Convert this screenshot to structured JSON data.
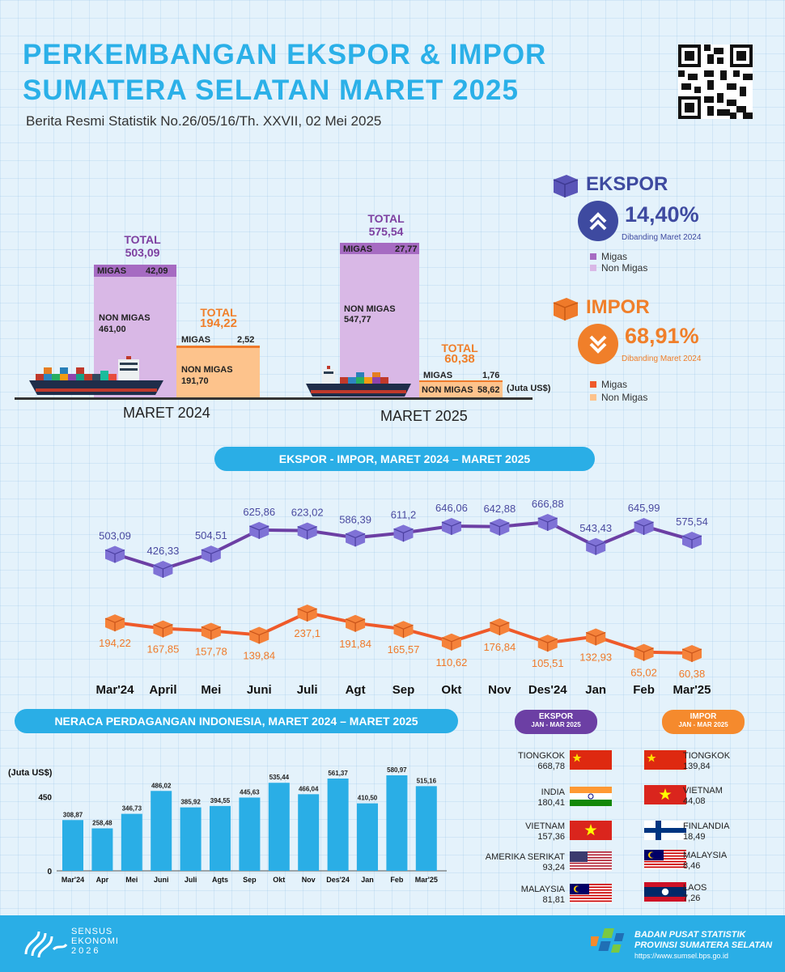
{
  "header": {
    "title_line1": "PERKEMBANGAN EKSPOR & IMPOR",
    "title_line2": "SUMATERA SELATAN MARET 2025",
    "subtitle": "Berita Resmi Statistik No.26/05/16/Th. XXVII, 02 Mei 2025"
  },
  "top_bars": {
    "unit": "(Juta US$)",
    "total_label": "TOTAL",
    "migas_label": "MIGAS",
    "nonmigas_label": "NON MIGAS",
    "mar2024": {
      "label": "MARET 2024",
      "ekspor_total": "503,09",
      "ekspor_migas": "42,09",
      "ekspor_nonmigas": "461,00",
      "impor_total": "194,22",
      "impor_migas": "2,52",
      "impor_nonmigas": "191,70"
    },
    "mar2025": {
      "label": "MARET 2025",
      "ekspor_total": "575,54",
      "ekspor_migas": "27,77",
      "ekspor_nonmigas": "547,77",
      "impor_total": "60,38",
      "impor_migas": "1,76",
      "impor_nonmigas": "58,62"
    }
  },
  "summary": {
    "ekspor": {
      "title": "EKSPOR",
      "pct": "14,40%",
      "note": "Dibanding Maret 2024",
      "legend_migas": "Migas",
      "legend_nonmigas": "Non Migas"
    },
    "impor": {
      "title": "IMPOR",
      "pct": "68,91%",
      "note": "Dibanding Maret 2024",
      "legend_migas": "Migas",
      "legend_nonmigas": "Non Migas"
    }
  },
  "line_section": {
    "title": "EKSPOR - IMPOR, MARET 2024 – MARET 2025"
  },
  "bar_section": {
    "title": "NERACA PERDAGANGAN INDONESIA, MARET 2024 – MARET 2025",
    "unit": "(Juta US$)"
  },
  "chart_data": [
    {
      "type": "line",
      "categories": [
        "Mar'24",
        "April",
        "Mei",
        "Juni",
        "Juli",
        "Agt",
        "Sep",
        "Okt",
        "Nov",
        "Des'24",
        "Jan",
        "Feb",
        "Mar'25"
      ],
      "series": [
        {
          "name": "EKSPOR",
          "values": [
            503.09,
            426.33,
            504.51,
            625.86,
            623.02,
            586.39,
            611.2,
            646.06,
            642.88,
            666.88,
            543.43,
            645.99,
            575.54
          ],
          "labels": [
            "503,09",
            "426,33",
            "504,51",
            "625,86",
            "623,02",
            "586,39",
            "611,2",
            "646,06",
            "642,88",
            "666,88",
            "543,43",
            "645,99",
            "575,54"
          ]
        },
        {
          "name": "IMPOR",
          "values": [
            194.22,
            167.85,
            157.78,
            139.84,
            237.1,
            191.84,
            165.57,
            110.62,
            176.84,
            105.51,
            132.93,
            65.02,
            60.38
          ],
          "labels": [
            "194,22",
            "167,85",
            "157,78",
            "139,84",
            "237,1",
            "191,84",
            "165,57",
            "110,62",
            "176,84",
            "105,51",
            "132,93",
            "65,02",
            "60,38"
          ]
        }
      ],
      "colors": {
        "ekspor": "#6c3fa4",
        "impor": "#ef5a2a"
      }
    },
    {
      "type": "bar",
      "categories": [
        "Mar'24",
        "Apr",
        "Mei",
        "Juni",
        "Juli",
        "Agts",
        "Sep",
        "Okt",
        "Nov",
        "Des'24",
        "Jan",
        "Feb",
        "Mar'25"
      ],
      "values": [
        308.87,
        258.48,
        346.73,
        486.02,
        385.92,
        394.55,
        445.63,
        535.44,
        466.04,
        561.37,
        410.5,
        580.97,
        515.16
      ],
      "labels": [
        "308,87",
        "258,48",
        "346,73",
        "486,02",
        "385,92",
        "394,55",
        "445,63",
        "535,44",
        "466,04",
        "561,37",
        "410,50",
        "580,97",
        "515,16"
      ],
      "ylabel": "(Juta US$)",
      "yticks": [
        0,
        450
      ],
      "ylim": [
        0,
        640
      ],
      "color": "#2aaee6"
    }
  ],
  "partners": {
    "ekspor": {
      "header": "EKSPOR",
      "sub": "JAN - MAR 2025",
      "items": [
        {
          "name": "TIONGKOK",
          "value": "668,78",
          "flag": "china-flag-icon"
        },
        {
          "name": "INDIA",
          "value": "180,41",
          "flag": "india-flag-icon"
        },
        {
          "name": "VIETNAM",
          "value": "157,36",
          "flag": "vietnam-flag-icon"
        },
        {
          "name": "AMERIKA SERIKAT",
          "value": "93,24",
          "flag": "usa-flag-icon"
        },
        {
          "name": "MALAYSIA",
          "value": "81,81",
          "flag": "malaysia-flag-icon"
        }
      ]
    },
    "impor": {
      "header": "IMPOR",
      "sub": "JAN - MAR 2025",
      "items": [
        {
          "name": "TIONGKOK",
          "value": "139,84",
          "flag": "china-flag-icon"
        },
        {
          "name": "VIETNAM",
          "value": "44,08",
          "flag": "vietnam-flag-icon"
        },
        {
          "name": "FINLANDIA",
          "value": "18,49",
          "flag": "finland-flag-icon"
        },
        {
          "name": "MALAYSIA",
          "value": "8,46",
          "flag": "malaysia-flag-icon"
        },
        {
          "name": "LAOS",
          "value": "7,26",
          "flag": "laos-flag-icon"
        }
      ]
    }
  },
  "footer": {
    "sensus_line1": "SENSUS",
    "sensus_line2": "EKONOMI",
    "sensus_line3": "2026",
    "bps_line1": "BADAN PUSAT STATISTIK",
    "bps_line2": "PROVINSI SUMATERA SELATAN",
    "bps_url": "https://www.sumsel.bps.go.id"
  }
}
